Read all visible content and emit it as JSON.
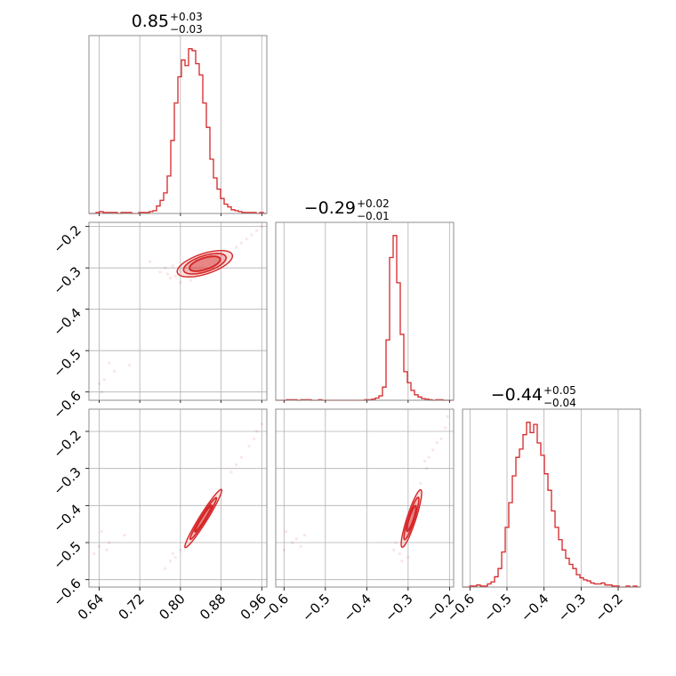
{
  "chart_data": {
    "type": "corner",
    "color": "#d62728",
    "grid": true,
    "parameters": [
      {
        "range": [
          0.62,
          0.97
        ],
        "ticks": [
          "0.64",
          "0.72",
          "0.80",
          "0.88",
          "0.96"
        ]
      },
      {
        "range": [
          -0.62,
          -0.19
        ],
        "ticks": [
          "−0.6",
          "−0.5",
          "−0.4",
          "−0.3",
          "−0.2"
        ]
      },
      {
        "range": [
          -0.62,
          -0.14
        ],
        "ticks": [
          "−0.6",
          "−0.5",
          "−0.4",
          "−0.3",
          "−0.2"
        ]
      }
    ],
    "titles": [
      {
        "main": "0.85",
        "plus": "+0.03",
        "minus": "−0.03"
      },
      {
        "main": "−0.29",
        "plus": "+0.02",
        "minus": "−0.01"
      },
      {
        "main": "−0.44",
        "plus": "+0.05",
        "minus": "−0.04"
      }
    ],
    "marginals": [
      {
        "x_start": 0.62,
        "bin_width": 0.007,
        "counts": [
          0,
          0,
          1,
          2,
          1,
          1,
          1,
          1,
          0,
          1,
          1,
          1,
          0,
          0,
          1,
          1,
          1,
          2,
          3,
          8,
          14,
          22,
          40,
          78,
          118,
          146,
          164,
          158,
          176,
          174,
          160,
          148,
          118,
          92,
          58,
          38,
          26,
          16,
          10,
          7,
          4,
          3,
          2,
          1,
          1,
          1,
          1,
          0,
          1,
          0
        ]
      },
      {
        "x_start": -0.62,
        "bin_width": 0.0086,
        "counts": [
          0,
          0,
          0,
          1,
          1,
          1,
          0,
          1,
          1,
          1,
          0,
          0,
          1,
          0,
          0,
          0,
          0,
          0,
          0,
          0,
          0,
          0,
          0,
          0,
          0,
          1,
          1,
          2,
          4,
          8,
          24,
          110,
          260,
          300,
          214,
          120,
          52,
          32,
          18,
          10,
          6,
          3,
          2,
          1,
          0,
          1,
          1,
          0,
          0,
          0
        ]
      },
      {
        "x_start": -0.62,
        "bin_width": 0.0096,
        "counts": [
          0,
          0,
          1,
          1,
          2,
          1,
          1,
          3,
          5,
          10,
          18,
          34,
          58,
          82,
          108,
          126,
          134,
          148,
          160,
          150,
          158,
          140,
          128,
          110,
          94,
          74,
          58,
          46,
          36,
          28,
          22,
          18,
          12,
          9,
          7,
          6,
          4,
          3,
          3,
          4,
          2,
          2,
          1,
          1,
          0,
          0,
          1,
          0,
          1,
          0
        ]
      }
    ],
    "contours": [
      {
        "x": 0,
        "y": 1,
        "angle_deg": 18,
        "center": [
          0.848,
          -0.29
        ],
        "sx": [
          0.036,
          0.05,
          0.065
        ],
        "sy": [
          0.013,
          0.018,
          0.023
        ]
      },
      {
        "x": 0,
        "y": 2,
        "angle_deg": 58,
        "center": [
          0.845,
          -0.435
        ],
        "sx": [
          0.035,
          0.055,
          0.077
        ],
        "sy": [
          0.004,
          0.006,
          0.009
        ]
      },
      {
        "x": 1,
        "y": 2,
        "angle_deg": 72,
        "center": [
          -0.292,
          -0.435
        ],
        "sx": [
          0.03,
          0.05,
          0.068
        ],
        "sy": [
          0.005,
          0.007,
          0.01
        ]
      }
    ],
    "scatter": [
      {
        "x": 0,
        "y": 1,
        "points": [
          [
            0.95,
            -0.21
          ],
          [
            0.96,
            -0.2
          ],
          [
            0.94,
            -0.22
          ],
          [
            0.93,
            -0.23
          ],
          [
            0.92,
            -0.24
          ],
          [
            0.91,
            -0.25
          ],
          [
            0.77,
            -0.3
          ],
          [
            0.775,
            -0.315
          ],
          [
            0.76,
            -0.31
          ],
          [
            0.78,
            -0.325
          ],
          [
            0.8,
            -0.335
          ],
          [
            0.82,
            -0.33
          ],
          [
            0.74,
            -0.285
          ],
          [
            0.785,
            -0.295
          ],
          [
            0.81,
            -0.3
          ],
          [
            0.83,
            -0.28
          ],
          [
            0.86,
            -0.27
          ],
          [
            0.88,
            -0.265
          ],
          [
            0.84,
            -0.31
          ],
          [
            0.79,
            -0.32
          ],
          [
            0.66,
            -0.53
          ],
          [
            0.67,
            -0.55
          ],
          [
            0.7,
            -0.535
          ],
          [
            0.645,
            -0.6
          ],
          [
            0.64,
            -0.58
          ],
          [
            0.65,
            -0.57
          ]
        ]
      },
      {
        "x": 0,
        "y": 2,
        "points": [
          [
            0.96,
            -0.18
          ],
          [
            0.95,
            -0.2
          ],
          [
            0.945,
            -0.22
          ],
          [
            0.935,
            -0.24
          ],
          [
            0.92,
            -0.27
          ],
          [
            0.91,
            -0.29
          ],
          [
            0.9,
            -0.31
          ],
          [
            0.77,
            -0.57
          ],
          [
            0.78,
            -0.55
          ],
          [
            0.79,
            -0.54
          ],
          [
            0.785,
            -0.53
          ],
          [
            0.8,
            -0.52
          ],
          [
            0.645,
            -0.47
          ],
          [
            0.64,
            -0.51
          ],
          [
            0.66,
            -0.5
          ],
          [
            0.69,
            -0.48
          ],
          [
            0.63,
            -0.53
          ],
          [
            0.655,
            -0.52
          ],
          [
            0.82,
            -0.49
          ],
          [
            0.85,
            -0.41
          ],
          [
            0.87,
            -0.38
          ],
          [
            0.83,
            -0.46
          ]
        ]
      },
      {
        "x": 1,
        "y": 2,
        "points": [
          [
            -0.205,
            -0.16
          ],
          [
            -0.21,
            -0.19
          ],
          [
            -0.22,
            -0.22
          ],
          [
            -0.23,
            -0.23
          ],
          [
            -0.24,
            -0.25
          ],
          [
            -0.25,
            -0.27
          ],
          [
            -0.255,
            -0.3
          ],
          [
            -0.26,
            -0.28
          ],
          [
            -0.33,
            -0.5
          ],
          [
            -0.335,
            -0.52
          ],
          [
            -0.32,
            -0.53
          ],
          [
            -0.315,
            -0.55
          ],
          [
            -0.31,
            -0.51
          ],
          [
            -0.3,
            -0.54
          ],
          [
            -0.595,
            -0.47
          ],
          [
            -0.58,
            -0.5
          ],
          [
            -0.57,
            -0.49
          ],
          [
            -0.55,
            -0.48
          ],
          [
            -0.6,
            -0.52
          ],
          [
            -0.56,
            -0.51
          ],
          [
            -0.28,
            -0.38
          ],
          [
            -0.27,
            -0.34
          ],
          [
            -0.3,
            -0.46
          ],
          [
            -0.29,
            -0.42
          ]
        ]
      }
    ]
  }
}
